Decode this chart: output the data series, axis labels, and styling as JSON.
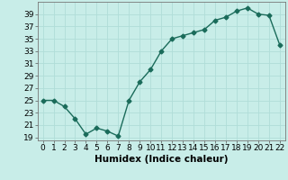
{
  "x": [
    0,
    1,
    2,
    3,
    4,
    5,
    6,
    7,
    8,
    9,
    10,
    11,
    12,
    13,
    14,
    15,
    16,
    17,
    18,
    19,
    20,
    21,
    22
  ],
  "y": [
    25,
    25,
    24,
    22,
    19.5,
    20.5,
    20,
    19.2,
    25,
    28,
    30,
    33,
    35,
    35.5,
    36,
    36.5,
    38,
    38.5,
    39.5,
    40,
    39,
    38.8,
    34
  ],
  "line_color": "#1a6b5a",
  "marker": "D",
  "marker_size": 2.5,
  "bg_color": "#c8ede8",
  "grid_color": "#b0ddd8",
  "xlabel": "Humidex (Indice chaleur)",
  "xlabel_fontsize": 7.5,
  "yticks": [
    19,
    21,
    23,
    25,
    27,
    29,
    31,
    33,
    35,
    37,
    39
  ],
  "xticks": [
    0,
    1,
    2,
    3,
    4,
    5,
    6,
    7,
    8,
    9,
    10,
    11,
    12,
    13,
    14,
    15,
    16,
    17,
    18,
    19,
    20,
    21,
    22
  ],
  "ylim": [
    18.5,
    41
  ],
  "xlim": [
    -0.5,
    22.5
  ],
  "tick_fontsize": 6.5,
  "linewidth": 1.0
}
